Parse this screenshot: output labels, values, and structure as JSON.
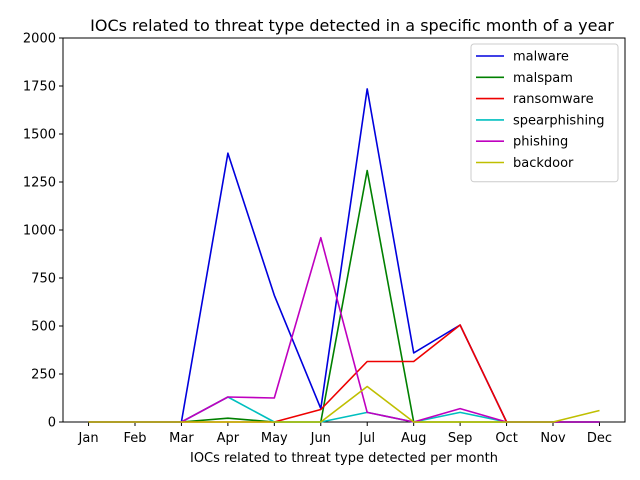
{
  "chart_data": {
    "type": "line",
    "title": "IOCs related to threat type detected in a specific month of a year",
    "xlabel": "IOCs related to threat type detected per month",
    "ylabel": "",
    "categories": [
      "Jan",
      "Feb",
      "Mar",
      "Apr",
      "May",
      "Jun",
      "Jul",
      "Aug",
      "Sep",
      "Oct",
      "Nov",
      "Dec"
    ],
    "ylim": [
      0,
      2000
    ],
    "yticks": [
      0,
      250,
      500,
      750,
      1000,
      1250,
      1500,
      1750,
      2000
    ],
    "grid": false,
    "legend_position": "top-right",
    "series": [
      {
        "name": "malware",
        "color": "#0000dd",
        "values": [
          0,
          0,
          0,
          1400,
          660,
          70,
          1735,
          360,
          505,
          0,
          0,
          0
        ]
      },
      {
        "name": "malspam",
        "color": "#008000",
        "values": [
          0,
          0,
          0,
          20,
          0,
          0,
          1310,
          0,
          0,
          0,
          0,
          0
        ]
      },
      {
        "name": "ransomware",
        "color": "#ee0000",
        "values": [
          0,
          0,
          0,
          0,
          0,
          65,
          315,
          315,
          505,
          0,
          0,
          0
        ]
      },
      {
        "name": "spearphishing",
        "color": "#00bfbf",
        "values": [
          0,
          0,
          0,
          130,
          0,
          0,
          50,
          0,
          50,
          0,
          0,
          0
        ]
      },
      {
        "name": "phishing",
        "color": "#bf00bf",
        "values": [
          0,
          0,
          0,
          130,
          125,
          960,
          50,
          0,
          70,
          0,
          0,
          0
        ]
      },
      {
        "name": "backdoor",
        "color": "#bfbf00",
        "values": [
          0,
          0,
          0,
          0,
          0,
          0,
          185,
          0,
          0,
          0,
          0,
          60
        ]
      }
    ]
  }
}
